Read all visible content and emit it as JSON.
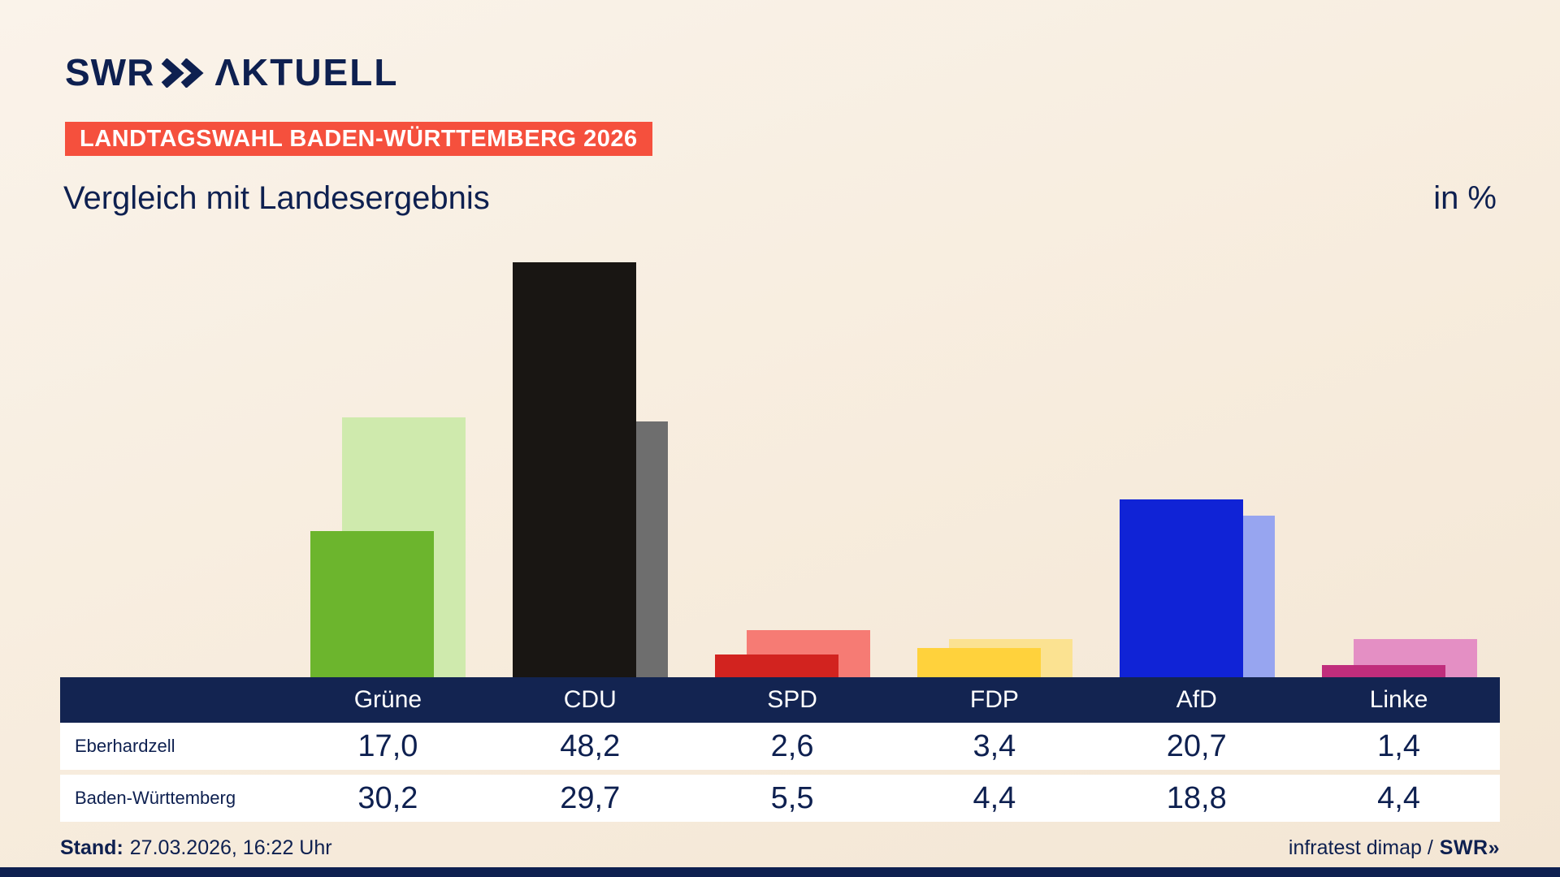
{
  "header": {
    "logo_swr": "SWR",
    "logo_aktuell": "ΛKTUELL",
    "badge": "LANDTAGSWAHL BADEN-WÜRTTEMBERG 2026",
    "title": "Vergleich mit Landesergebnis",
    "unit": "in %"
  },
  "chart_data": {
    "type": "bar",
    "title": "Vergleich mit Landesergebnis",
    "unit": "%",
    "ylim": [
      0,
      50
    ],
    "grid": false,
    "legend_position": "table-rows",
    "categories": [
      "Grüne",
      "CDU",
      "SPD",
      "FDP",
      "AfD",
      "Linke"
    ],
    "series": [
      {
        "name": "Eberhardzell",
        "values": [
          17.0,
          48.2,
          2.6,
          3.4,
          20.7,
          1.4
        ],
        "display": [
          "17,0",
          "48,2",
          "2,6",
          "3,4",
          "20,7",
          "1,4"
        ],
        "colors": [
          "#6cb52d",
          "#191613",
          "#d2231f",
          "#ffd23c",
          "#1023d6",
          "#c02d7c"
        ]
      },
      {
        "name": "Baden-Württemberg",
        "values": [
          30.2,
          29.7,
          5.5,
          4.4,
          18.8,
          4.4
        ],
        "display": [
          "30,2",
          "29,7",
          "5,5",
          "4,4",
          "18,8",
          "4,4"
        ],
        "colors": [
          "#cfeaad",
          "#6e6e6e",
          "#f67b74",
          "#fbe291",
          "#97a5f0",
          "#e48fc4"
        ]
      }
    ]
  },
  "footer": {
    "stand_label": "Stand:",
    "stand_value": "27.03.2026, 16:22 Uhr",
    "source_text": "infratest dimap /",
    "source_logo_swr": "SWR",
    "source_logo_chevrons": "»"
  },
  "colors": {
    "background": "#f7ecdd",
    "navy": "#0e2050",
    "badge_red": "#f5503d",
    "table_header_bg": "#132451",
    "row_bg": "#ffffff"
  }
}
